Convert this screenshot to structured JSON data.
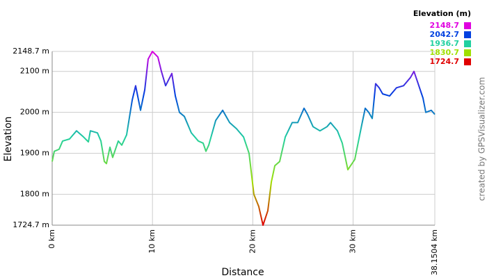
{
  "chart_data": {
    "type": "line",
    "x_label": "Distance",
    "y_label": "Elevation",
    "x": [
      0,
      0.21,
      0.69,
      1.04,
      1.73,
      2.43,
      3.12,
      3.61,
      3.81,
      4.51,
      4.86,
      5.2,
      5.41,
      5.76,
      6.03,
      6.59,
      6.94,
      7.42,
      7.98,
      8.32,
      8.81,
      9.23,
      9.57,
      9.99,
      10.54,
      10.89,
      11.31,
      11.93,
      12.28,
      12.69,
      13.18,
      13.87,
      14.57,
      15.05,
      15.33,
      15.61,
      16.3,
      17.0,
      17.69,
      18.38,
      19.08,
      19.63,
      20.11,
      20.6,
      21.02,
      21.5,
      21.85,
      22.2,
      22.68,
      23.24,
      23.93,
      24.48,
      25.11,
      25.46,
      26.01,
      26.7,
      27.4,
      27.75,
      28.44,
      28.92,
      29.48,
      30.17,
      30.87,
      31.21,
      31.56,
      31.91,
      32.25,
      32.6,
      32.95,
      33.64,
      34.33,
      35.03,
      35.72,
      36.07,
      36.42,
      36.97,
      37.25,
      37.8,
      38.1504
    ],
    "series": [
      {
        "values": [
          1880,
          1905,
          1910,
          1930,
          1935,
          1955,
          1940,
          1928,
          1955,
          1950,
          1930,
          1880,
          1875,
          1915,
          1890,
          1930,
          1920,
          1945,
          2030,
          2065,
          2005,
          2055,
          2130,
          2148.7,
          2135,
          2100,
          2065,
          2095,
          2040,
          2000,
          1990,
          1950,
          1930,
          1925,
          1905,
          1920,
          1980,
          2005,
          1975,
          1960,
          1940,
          1900,
          1800,
          1770,
          1724.7,
          1760,
          1830,
          1870,
          1880,
          1940,
          1975,
          1975,
          2010,
          1995,
          1965,
          1955,
          1965,
          1975,
          1955,
          1925,
          1860,
          1885,
          1970,
          2010,
          2000,
          1985,
          2070,
          2060,
          2045,
          2040,
          2060,
          2065,
          2085,
          2100,
          2075,
          2035,
          2000,
          2005,
          1995
        ]
      }
    ],
    "xlim": [
      0,
      38.1504
    ],
    "ylim": [
      1724.7,
      2148.7
    ],
    "xticks": [
      {
        "value": 0,
        "label": "0 km"
      },
      {
        "value": 10,
        "label": "10 km"
      },
      {
        "value": 20,
        "label": "20 km"
      },
      {
        "value": 30,
        "label": "30 km"
      },
      {
        "value": 38.1504,
        "label": "38.1504 km"
      }
    ],
    "yticks": [
      {
        "value": 1724.7,
        "label": "1724.7 m"
      },
      {
        "value": 1800,
        "label": "1800 m"
      },
      {
        "value": 1900,
        "label": "1900 m"
      },
      {
        "value": 2000,
        "label": "2000 m"
      },
      {
        "value": 2100,
        "label": "2100 m"
      },
      {
        "value": 2148.7,
        "label": "2148.7 m"
      }
    ],
    "grid": true,
    "legend": {
      "title": "Elevation (m)",
      "levels": [
        {
          "value": 2148.7,
          "color": "#e000e0"
        },
        {
          "value": 2042.7,
          "color": "#0040e0"
        },
        {
          "value": 1936.7,
          "color": "#20d0a0"
        },
        {
          "value": 1830.7,
          "color": "#a0e000"
        },
        {
          "value": 1724.7,
          "color": "#e00000"
        }
      ]
    },
    "credit": "created by GPSVisualizer.com"
  }
}
